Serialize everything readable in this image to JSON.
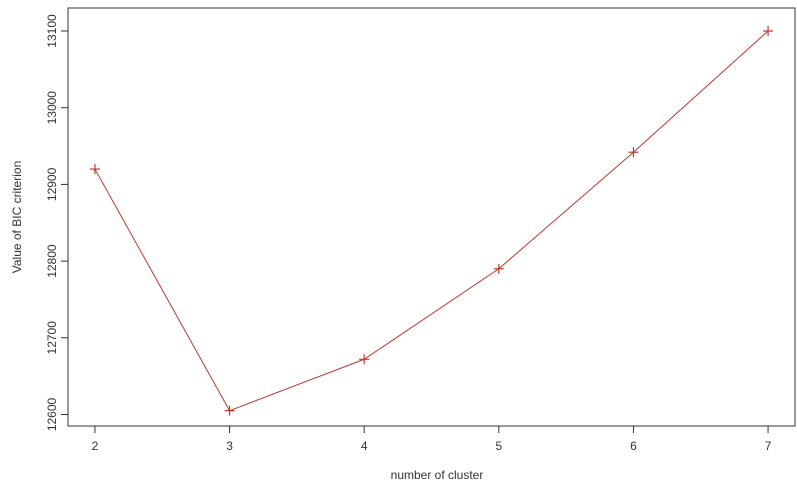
{
  "chart_data": {
    "type": "line",
    "title": "",
    "xlabel": "number of cluster",
    "ylabel": "Value of BIC criterion",
    "x": [
      2,
      3,
      4,
      5,
      6,
      7
    ],
    "series": [
      {
        "values": [
          12920,
          12605,
          12672,
          12790,
          12942,
          13100
        ],
        "color": "#c0392b",
        "marker": "plus"
      }
    ],
    "x_ticks": [
      2,
      3,
      4,
      5,
      6,
      7
    ],
    "y_ticks": [
      12600,
      12700,
      12800,
      12900,
      13000,
      13100
    ],
    "xlim": [
      1.8,
      7.2
    ],
    "ylim": [
      12585,
      13130
    ],
    "grid": false,
    "axis_color": "#333333"
  }
}
